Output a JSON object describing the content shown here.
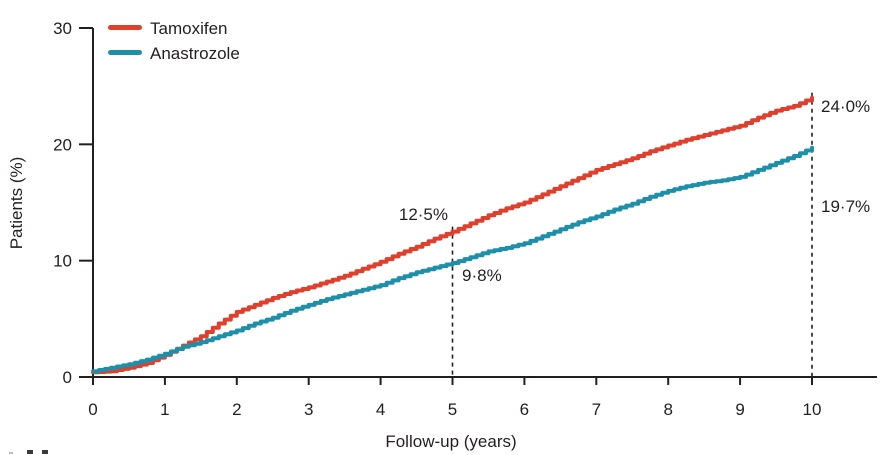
{
  "chart_data": {
    "type": "line",
    "line_style": "step",
    "title": "",
    "xlabel": "Follow-up (years)",
    "ylabel": "Patients (%)",
    "xlim": [
      0,
      10.9
    ],
    "ylim": [
      0,
      30
    ],
    "grid": false,
    "legend_position": "top-left",
    "x_ticks": [
      "0",
      "1",
      "2",
      "3",
      "4",
      "5",
      "6",
      "7",
      "8",
      "9",
      "10"
    ],
    "y_ticks": [
      "0",
      "10",
      "20",
      "30"
    ],
    "x": [
      0,
      0.25,
      0.5,
      0.75,
      1,
      1.25,
      1.5,
      1.75,
      2,
      2.25,
      2.5,
      2.75,
      3,
      3.25,
      3.5,
      3.75,
      4,
      4.25,
      4.5,
      4.75,
      5,
      5.25,
      5.5,
      5.75,
      6,
      6.25,
      6.5,
      6.75,
      7,
      7.25,
      7.5,
      7.75,
      8,
      8.25,
      8.5,
      8.75,
      9,
      9.25,
      9.5,
      9.75,
      10
    ],
    "series": [
      {
        "name": "Tamoxifen",
        "color": "#df402d",
        "values": [
          0.4,
          0.5,
          0.8,
          1.2,
          1.9,
          2.7,
          3.5,
          4.6,
          5.6,
          6.2,
          6.8,
          7.3,
          7.7,
          8.2,
          8.7,
          9.3,
          9.9,
          10.6,
          11.2,
          11.9,
          12.5,
          13.2,
          13.9,
          14.5,
          15.0,
          15.7,
          16.4,
          17.1,
          17.8,
          18.3,
          18.8,
          19.4,
          19.9,
          20.4,
          20.8,
          21.2,
          21.6,
          22.3,
          22.9,
          23.3,
          24.0
        ],
        "annotations": [
          {
            "x": 5,
            "value": 12.5,
            "label": "12·5%"
          },
          {
            "x": 10,
            "value": 24.0,
            "label": "24·0%"
          }
        ]
      },
      {
        "name": "Anastrozole",
        "color": "#1e8fa8",
        "values": [
          0.5,
          0.8,
          1.1,
          1.5,
          2.0,
          2.6,
          3.0,
          3.5,
          4.0,
          4.6,
          5.1,
          5.7,
          6.2,
          6.7,
          7.1,
          7.5,
          7.9,
          8.5,
          9.0,
          9.4,
          9.8,
          10.3,
          10.8,
          11.1,
          11.5,
          12.1,
          12.7,
          13.3,
          13.8,
          14.4,
          14.9,
          15.5,
          16.0,
          16.4,
          16.7,
          16.9,
          17.2,
          17.8,
          18.4,
          19.0,
          19.7
        ],
        "annotations": [
          {
            "x": 5,
            "value": 9.8,
            "label": "9·8%"
          },
          {
            "x": 10,
            "value": 19.7,
            "label": "19·7%"
          }
        ]
      }
    ],
    "reference_lines": [
      {
        "x": 5,
        "style": "dashed"
      },
      {
        "x": 10,
        "style": "dashed"
      }
    ],
    "axis_color": "#231f20"
  }
}
